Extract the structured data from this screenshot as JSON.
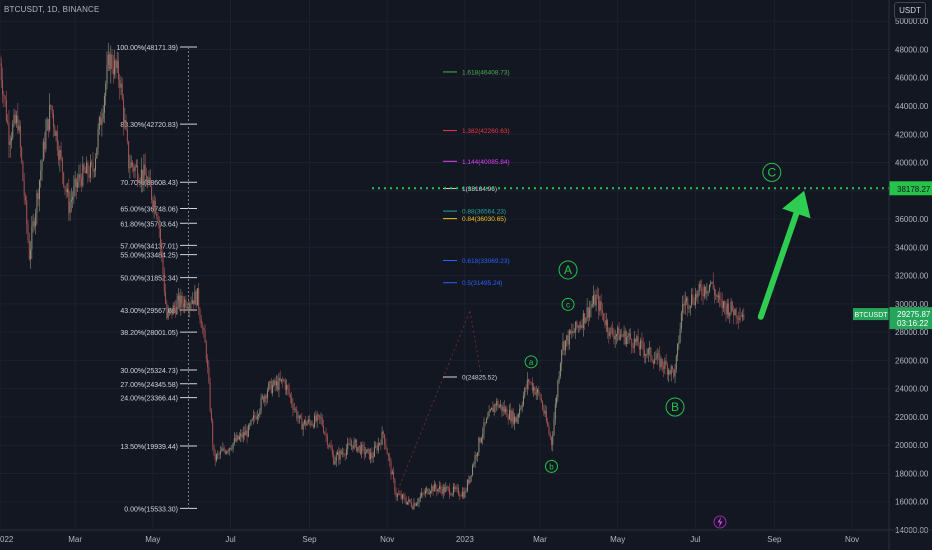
{
  "header": {
    "symbol_title": "BTCUSDT, 1D, BINANCE",
    "currency_button": "USDT"
  },
  "price_axis": {
    "ticks": [
      "50000.00",
      "48000.00",
      "46000.00",
      "44000.00",
      "42000.00",
      "40000.00",
      "38000.00",
      "36000.00",
      "34000.00",
      "32000.00",
      "30000.00",
      "28000.00",
      "26000.00",
      "24000.00",
      "22000.00",
      "20000.00",
      "18000.00",
      "16000.00",
      "14000.00"
    ],
    "last_price_label": "BTCUSDT",
    "last_price": "29275.87",
    "countdown": "03:16:22",
    "target_price": "38178.27"
  },
  "time_axis": {
    "ticks": [
      "022",
      "Mar",
      "May",
      "Jul",
      "Sep",
      "Nov",
      "2023",
      "Mar",
      "May",
      "Jul",
      "Sep",
      "Nov"
    ]
  },
  "colors": {
    "background": "#131722",
    "up": "#8f8f7a",
    "down": "#a65353",
    "green": "#26c24a",
    "fib_left": "#d1d4dc",
    "price_tag": "#26a65b"
  },
  "chart_data": {
    "type": "candlestick",
    "symbol": "BTCUSDT",
    "interval": "1D",
    "exchange": "BINANCE",
    "ylim": [
      14000,
      51500
    ],
    "x_range": [
      "2022-01-01",
      "2023-11-30"
    ],
    "price_path": [
      [
        "2022-01-01",
        47000
      ],
      [
        "2022-01-08",
        42000
      ],
      [
        "2022-01-15",
        43000
      ],
      [
        "2022-01-24",
        33500
      ],
      [
        "2022-02-05",
        41500
      ],
      [
        "2022-02-10",
        44000
      ],
      [
        "2022-02-24",
        37000
      ],
      [
        "2022-03-05",
        39000
      ],
      [
        "2022-03-15",
        39500
      ],
      [
        "2022-03-28",
        47400
      ],
      [
        "2022-04-05",
        46000
      ],
      [
        "2022-04-12",
        40000
      ],
      [
        "2022-04-25",
        39000
      ],
      [
        "2022-05-05",
        36500
      ],
      [
        "2022-05-12",
        29000
      ],
      [
        "2022-05-20",
        30000
      ],
      [
        "2022-06-05",
        30500
      ],
      [
        "2022-06-12",
        26500
      ],
      [
        "2022-06-18",
        19000
      ],
      [
        "2022-07-01",
        20000
      ],
      [
        "2022-07-15",
        21000
      ],
      [
        "2022-07-30",
        24000
      ],
      [
        "2022-08-12",
        24500
      ],
      [
        "2022-08-25",
        21500
      ],
      [
        "2022-09-10",
        21800
      ],
      [
        "2022-09-20",
        19000
      ],
      [
        "2022-10-05",
        20100
      ],
      [
        "2022-10-20",
        19200
      ],
      [
        "2022-10-29",
        20800
      ],
      [
        "2022-11-08",
        16500
      ],
      [
        "2022-11-21",
        15800
      ],
      [
        "2022-12-05",
        17000
      ],
      [
        "2022-12-20",
        16800
      ],
      [
        "2023-01-01",
        16600
      ],
      [
        "2023-01-14",
        20800
      ],
      [
        "2023-01-25",
        23000
      ],
      [
        "2023-02-10",
        21800
      ],
      [
        "2023-02-20",
        24600
      ],
      [
        "2023-03-01",
        23400
      ],
      [
        "2023-03-10",
        20200
      ],
      [
        "2023-03-18",
        27000
      ],
      [
        "2023-03-30",
        28300
      ],
      [
        "2023-04-14",
        30400
      ],
      [
        "2023-04-25",
        28000
      ],
      [
        "2023-05-10",
        27600
      ],
      [
        "2023-05-25",
        26500
      ],
      [
        "2023-06-15",
        25100
      ],
      [
        "2023-06-21",
        30000
      ],
      [
        "2023-06-30",
        30500
      ],
      [
        "2023-07-13",
        31500
      ],
      [
        "2023-07-20",
        30000
      ],
      [
        "2023-08-01",
        29500
      ],
      [
        "2023-08-08",
        29275
      ]
    ],
    "fib_retracement_left": [
      {
        "label": "100.00%(48171.39)",
        "price": 48171.39
      },
      {
        "label": "83.30%(42720.83)",
        "price": 42720.83
      },
      {
        "label": "70.70%(38608.43)",
        "price": 38608.43
      },
      {
        "label": "65.00%(36748.06)",
        "price": 36748.06
      },
      {
        "label": "61.80%(35703.64)",
        "price": 35703.64
      },
      {
        "label": "57.00%(34137.01)",
        "price": 34137.01
      },
      {
        "label": "55.00%(33484.25)",
        "price": 33484.25
      },
      {
        "label": "50.00%(31852.34)",
        "price": 31852.34
      },
      {
        "label": "43.00%(29567.68)",
        "price": 29567.68
      },
      {
        "label": "38.20%(28001.05)",
        "price": 28001.05
      },
      {
        "label": "30.00%(25324.73)",
        "price": 25324.73
      },
      {
        "label": "27.00%(24345.58)",
        "price": 24345.58
      },
      {
        "label": "24.00%(23366.44)",
        "price": 23366.44
      },
      {
        "label": "13.50%(19939.44)",
        "price": 19939.44
      },
      {
        "label": "0.00%(15533.30)",
        "price": 15533.3
      }
    ],
    "fib_extension": [
      {
        "label": "1.618(46408.73)",
        "price": 46408.73,
        "color": "#4caf50"
      },
      {
        "label": "1.382(42260.63)",
        "price": 42260.63,
        "color": "#f23645"
      },
      {
        "label": "1.144(40085.84)",
        "price": 40085.84,
        "color": "#e040fb"
      },
      {
        "label": "1(38164.96)",
        "price": 38164.96,
        "color": "#d1d4dc"
      },
      {
        "label": "0.88(36564.23)",
        "price": 36564.23,
        "color": "#26a69a"
      },
      {
        "label": "0.84(36030.65)",
        "price": 36030.65,
        "color": "#f5c518"
      },
      {
        "label": "0.618(33069.23)",
        "price": 33069.23,
        "color": "#2962ff"
      },
      {
        "label": "0.5(31495.24)",
        "price": 31495.24,
        "color": "#2962ff"
      },
      {
        "label": "0(24825.52)",
        "price": 24825.52,
        "color": "#d1d4dc"
      }
    ],
    "wave_labels": [
      {
        "text": "A",
        "date": "2023-03-23",
        "price": 32400,
        "size": "large"
      },
      {
        "text": "B",
        "date": "2023-06-15",
        "price": 22700,
        "size": "large"
      },
      {
        "text": "C",
        "date": "2023-08-30",
        "price": 39300,
        "size": "large"
      },
      {
        "text": "a",
        "date": "2023-02-22",
        "price": 25900,
        "size": "small"
      },
      {
        "text": "b",
        "date": "2023-03-10",
        "price": 18500,
        "size": "small"
      },
      {
        "text": "c",
        "date": "2023-03-23",
        "price": 29960,
        "size": "small"
      }
    ],
    "target_line_price": 38178.27,
    "arrow": {
      "from": [
        "2023-08-08",
        29300
      ],
      "to": [
        "2023-09-15",
        38000
      ]
    }
  }
}
